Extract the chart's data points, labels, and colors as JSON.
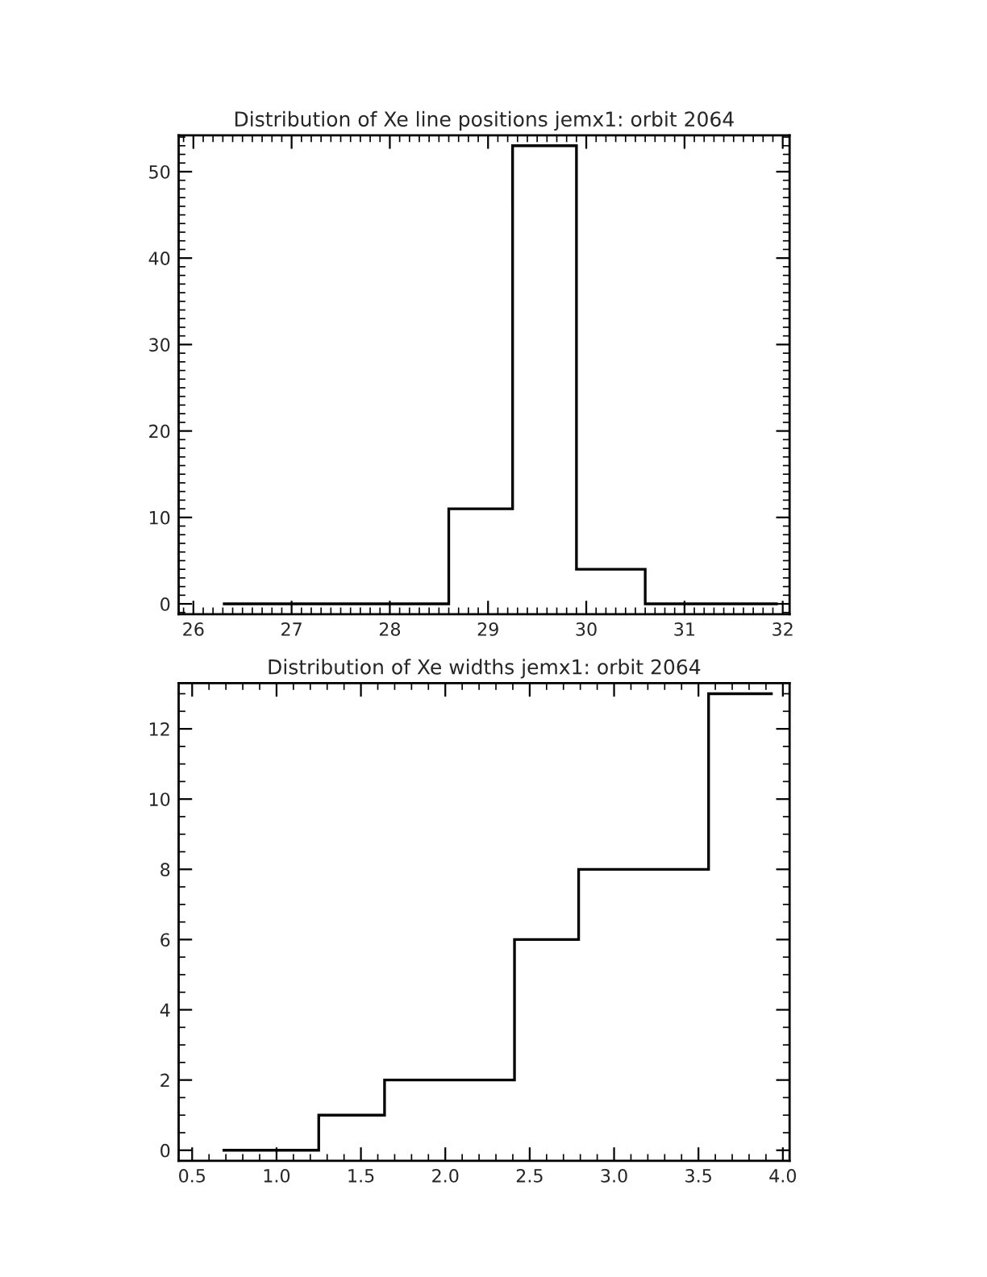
{
  "chart_data": [
    {
      "type": "histogram",
      "title": "Distribution of Xe line positions jemx1: orbit 2064",
      "color": "#000000",
      "bins": [
        26.3,
        28.6,
        29.25,
        29.9,
        30.6,
        31.95
      ],
      "values": [
        0,
        11,
        53,
        4,
        0
      ],
      "xlim": [
        25.85,
        32.07
      ],
      "ylim": [
        -1.2,
        54.2
      ],
      "xticks": [
        26,
        27,
        28,
        29,
        30,
        31,
        32
      ],
      "yticks": [
        0,
        10,
        20,
        30,
        40,
        50
      ]
    },
    {
      "type": "histogram",
      "title": "Distribution of Xe widths jemx1: orbit 2064",
      "color": "#000000",
      "bins": [
        0.68,
        1.25,
        1.64,
        2.41,
        2.79,
        3.56,
        3.94
      ],
      "values": [
        0,
        1,
        2,
        6,
        8,
        13
      ],
      "xlim": [
        0.42,
        4.04
      ],
      "ylim": [
        -0.3,
        13.3
      ],
      "xticks": [
        {
          "value": 0.5,
          "label": "0.5"
        },
        {
          "value": 1,
          "label": "1.0"
        },
        {
          "value": 1.5,
          "label": "1.5"
        },
        {
          "value": 2,
          "label": "2.0"
        },
        {
          "value": 2.5,
          "label": "2.5"
        },
        {
          "value": 3,
          "label": "3.0"
        },
        {
          "value": 3.5,
          "label": "3.5"
        },
        {
          "value": 4,
          "label": "4.0"
        }
      ],
      "yticks": [
        0,
        2,
        4,
        6,
        8,
        10,
        12
      ]
    }
  ]
}
